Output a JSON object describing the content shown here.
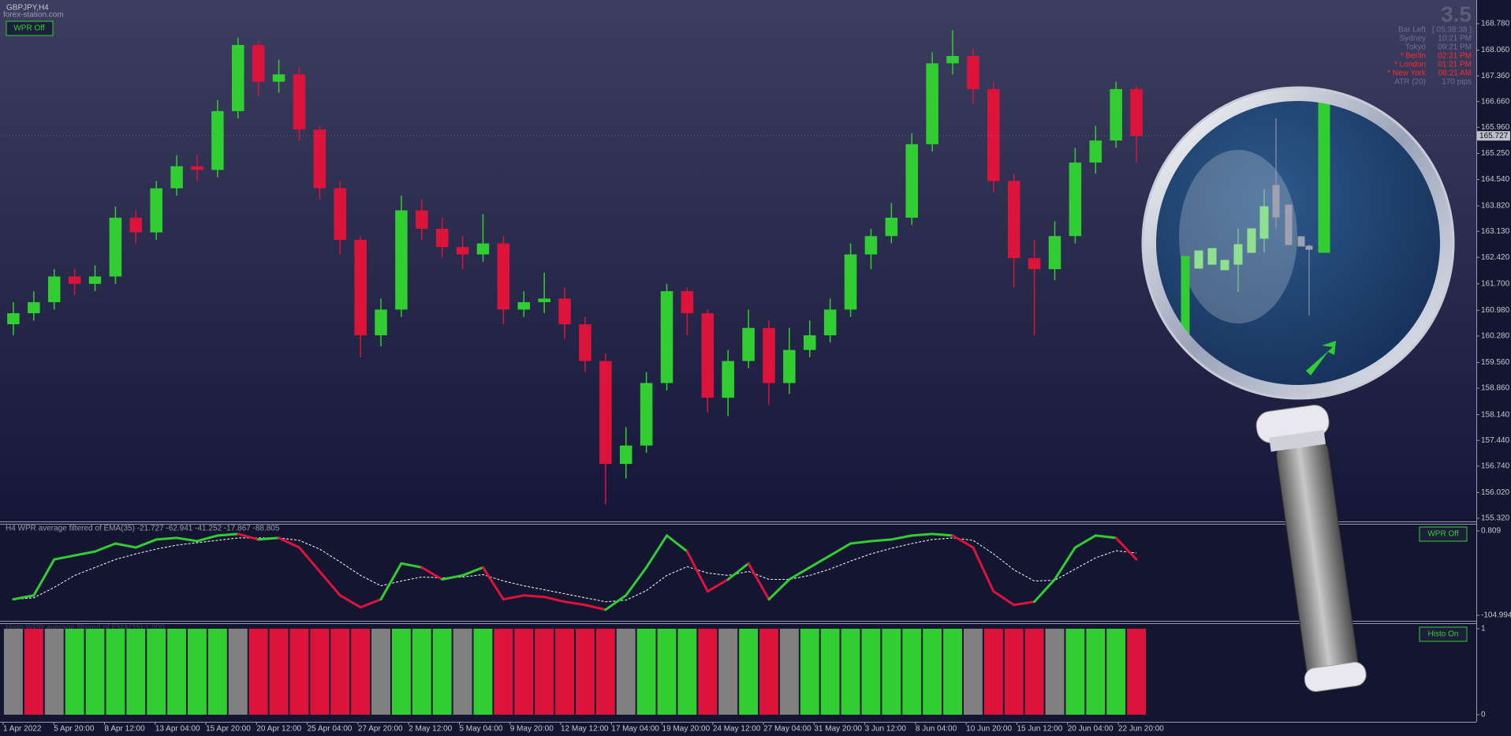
{
  "header": {
    "symbol": "GBPJPY,H4",
    "source": "forex-station.com",
    "button": "WPR Off"
  },
  "info": {
    "spread": "3.5",
    "rows": [
      {
        "label": "Bar Left",
        "value": "[ 05:38:38 ]",
        "color": "#6e7090"
      },
      {
        "label": "Sydney",
        "value": "10:21 PM",
        "color": "#6e7090"
      },
      {
        "label": "Tokyo",
        "value": "09:21 PM",
        "color": "#6e7090"
      },
      {
        "label": "* Berlin",
        "value": "02:21 PM",
        "color": "#ff2a2a"
      },
      {
        "label": "* London",
        "value": "01:21 PM",
        "color": "#ff2a2a"
      },
      {
        "label": "* New York",
        "value": "08:21 AM",
        "color": "#ff2a2a"
      },
      {
        "label": "ATR (20)",
        "value": "170 pips",
        "color": "#6e7090"
      }
    ]
  },
  "x_axis": {
    "labels": [
      "1 Apr 2022",
      "5 Apr 20:00",
      "8 Apr 12:00",
      "13 Apr 04:00",
      "15 Apr 20:00",
      "20 Apr 12:00",
      "25 Apr 04:00",
      "27 Apr 20:00",
      "2 May 12:00",
      "5 May 04:00",
      "9 May 20:00",
      "12 May 12:00",
      "17 May 04:00",
      "19 May 20:00",
      "24 May 12:00",
      "27 May 04:00",
      "31 May 20:00",
      "3 Jun 12:00",
      "8 Jun 04:00",
      "10 Jun 20:00",
      "15 Jun 12:00",
      "20 Jun 04:00",
      "22 Jun 20:00"
    ]
  },
  "chart_data": [
    {
      "type": "candlestick",
      "up_color": "#32cd32",
      "down_color": "#dc143c",
      "open": [
        160.6,
        160.9,
        161.2,
        161.9,
        161.7,
        161.9,
        163.5,
        163.1,
        164.3,
        164.9,
        164.8,
        166.4,
        168.2,
        167.2,
        167.4,
        165.9,
        164.3,
        162.9,
        160.3,
        161.0,
        163.7,
        163.2,
        162.7,
        162.5,
        162.8,
        161.0,
        161.2,
        161.3,
        160.6,
        159.6,
        156.8,
        157.3,
        159.0,
        161.5,
        160.9,
        158.6,
        159.6,
        160.5,
        159.0,
        159.9,
        160.3,
        161.0,
        162.5,
        163.0,
        163.5,
        165.5,
        167.7,
        167.9,
        167.0,
        164.5,
        162.4,
        162.1,
        163.0,
        165.0,
        165.6,
        167.0
      ],
      "high": [
        161.2,
        161.5,
        162.1,
        162.1,
        162.2,
        163.8,
        163.7,
        164.5,
        165.2,
        165.2,
        166.7,
        168.4,
        168.3,
        167.8,
        167.6,
        166.0,
        164.5,
        163.0,
        161.3,
        164.1,
        164.0,
        163.5,
        163.0,
        163.6,
        163.0,
        161.5,
        162.0,
        161.6,
        160.8,
        159.8,
        157.8,
        159.3,
        161.7,
        161.6,
        161.0,
        159.9,
        161.0,
        160.7,
        160.5,
        160.7,
        161.3,
        162.8,
        163.2,
        163.9,
        165.8,
        168.0,
        168.6,
        168.1,
        167.2,
        164.7,
        162.9,
        163.4,
        165.4,
        166.0,
        167.2,
        167.1
      ],
      "low": [
        160.3,
        160.7,
        161.0,
        161.4,
        161.5,
        161.7,
        162.8,
        162.9,
        164.1,
        164.5,
        164.6,
        166.2,
        166.8,
        166.9,
        165.6,
        164.0,
        162.5,
        159.7,
        160.0,
        160.8,
        162.9,
        162.4,
        162.1,
        162.3,
        160.6,
        160.8,
        160.9,
        160.2,
        159.3,
        155.7,
        156.4,
        157.1,
        158.8,
        160.3,
        158.2,
        158.1,
        159.4,
        158.4,
        158.7,
        159.7,
        160.1,
        160.8,
        162.1,
        162.8,
        163.3,
        165.3,
        167.4,
        166.6,
        164.2,
        161.6,
        160.3,
        161.8,
        162.8,
        164.7,
        165.4,
        165.0
      ],
      "close": [
        160.9,
        161.2,
        161.9,
        161.7,
        161.9,
        163.5,
        163.1,
        164.3,
        164.9,
        164.8,
        166.4,
        168.2,
        167.2,
        167.4,
        165.9,
        164.3,
        162.9,
        160.3,
        161.0,
        163.7,
        163.2,
        162.7,
        162.5,
        162.8,
        161.0,
        161.2,
        161.3,
        160.6,
        159.6,
        156.8,
        157.3,
        159.0,
        161.5,
        160.9,
        158.6,
        159.6,
        160.5,
        159.0,
        159.9,
        160.3,
        161.0,
        162.5,
        163.0,
        163.5,
        165.5,
        167.7,
        167.9,
        167.0,
        164.5,
        162.4,
        162.1,
        163.0,
        165.0,
        165.6,
        167.0,
        165.727
      ],
      "ylim": [
        155.32,
        168.78
      ],
      "yticks": [
        {
          "value": 168.78,
          "label": "168.780"
        },
        {
          "value": 168.06,
          "label": "168.060"
        },
        {
          "value": 167.36,
          "label": "167.360"
        },
        {
          "value": 166.66,
          "label": "166.660"
        },
        {
          "value": 165.96,
          "label": "165.960"
        },
        {
          "value": 165.25,
          "label": "165.250"
        },
        {
          "value": 164.54,
          "label": "164.540"
        },
        {
          "value": 163.82,
          "label": "163.820"
        },
        {
          "value": 163.13,
          "label": "163.130"
        },
        {
          "value": 162.42,
          "label": "162.420"
        },
        {
          "value": 161.7,
          "label": "161.700"
        },
        {
          "value": 160.98,
          "label": "160.980"
        },
        {
          "value": 160.28,
          "label": "160.280"
        },
        {
          "value": 159.56,
          "label": "159.560"
        },
        {
          "value": 158.86,
          "label": "158.860"
        },
        {
          "value": 158.14,
          "label": "158.140"
        },
        {
          "value": 157.44,
          "label": "157.440"
        },
        {
          "value": 156.74,
          "label": "156.740"
        },
        {
          "value": 156.02,
          "label": "156.020"
        },
        {
          "value": 155.32,
          "label": "155.320"
        }
      ]
    },
    {
      "type": "line",
      "title": "H4  WPR average filtered of EMA(35) -21.727 -62.941 -41.252 -17.867 -88.805",
      "button": "WPR Off",
      "down_color": "#dc143c",
      "series": [
        {
          "color": "#32cd32",
          "values": [
            -85,
            -80,
            -35,
            -30,
            -25,
            -15,
            -20,
            -10,
            -8,
            -12,
            -5,
            -3,
            -10,
            -8,
            -20,
            -50,
            -80,
            -95,
            -85,
            -40,
            -45,
            -60,
            -55,
            -45,
            -85,
            -80,
            -82,
            -88,
            -92,
            -98,
            -80,
            -45,
            -5,
            -25,
            -75,
            -60,
            -40,
            -85,
            -60,
            -45,
            -30,
            -15,
            -12,
            -10,
            -5,
            -3,
            -5,
            -20,
            -75,
            -92,
            -88,
            -60,
            -20,
            -5,
            -8,
            -35
          ]
        },
        {
          "color": "#ffffff",
          "values": [
            -85,
            -83,
            -70,
            -55,
            -45,
            -35,
            -28,
            -22,
            -17,
            -14,
            -11,
            -8,
            -8,
            -8,
            -11,
            -22,
            -38,
            -55,
            -68,
            -62,
            -57,
            -58,
            -57,
            -54,
            -62,
            -68,
            -73,
            -78,
            -83,
            -88,
            -86,
            -74,
            -55,
            -44,
            -52,
            -55,
            -50,
            -60,
            -60,
            -55,
            -47,
            -37,
            -28,
            -21,
            -15,
            -10,
            -8,
            -11,
            -28,
            -48,
            -62,
            -61,
            -47,
            -33,
            -24,
            -27
          ]
        }
      ],
      "ylim": [
        -104.994,
        0.809
      ],
      "yticks": [
        0.809,
        -104.994
      ]
    },
    {
      "type": "histogram",
      "title": "Histo WPR average filtered of EMA(35) 1.000",
      "button": "Histo On",
      "values": [
        1,
        1,
        1,
        1,
        1,
        1,
        1,
        1,
        1,
        1,
        1,
        1,
        1,
        1,
        1,
        1,
        1,
        1,
        1,
        1,
        1,
        1,
        1,
        1,
        1,
        1,
        1,
        1,
        1,
        1,
        1,
        1,
        1,
        1,
        1,
        1,
        1,
        1,
        1,
        1,
        1,
        1,
        1,
        1,
        1,
        1,
        1,
        1,
        1,
        1,
        1,
        1,
        1,
        1,
        1,
        1
      ],
      "colors": [
        "#808080",
        "#dc143c",
        "#808080",
        "#32cd32",
        "#32cd32",
        "#32cd32",
        "#32cd32",
        "#32cd32",
        "#32cd32",
        "#32cd32",
        "#32cd32",
        "#808080",
        "#dc143c",
        "#dc143c",
        "#dc143c",
        "#dc143c",
        "#dc143c",
        "#dc143c",
        "#808080",
        "#32cd32",
        "#32cd32",
        "#32cd32",
        "#808080",
        "#32cd32",
        "#dc143c",
        "#dc143c",
        "#dc143c",
        "#dc143c",
        "#dc143c",
        "#dc143c",
        "#808080",
        "#32cd32",
        "#32cd32",
        "#32cd32",
        "#dc143c",
        "#808080",
        "#32cd32",
        "#dc143c",
        "#808080",
        "#32cd32",
        "#32cd32",
        "#32cd32",
        "#32cd32",
        "#32cd32",
        "#32cd32",
        "#32cd32",
        "#32cd32",
        "#808080",
        "#dc143c",
        "#dc143c",
        "#dc143c",
        "#808080",
        "#32cd32",
        "#32cd32",
        "#32cd32",
        "#dc143c"
      ],
      "ylim": [
        0,
        1
      ],
      "yticks": [
        0,
        1
      ]
    }
  ]
}
